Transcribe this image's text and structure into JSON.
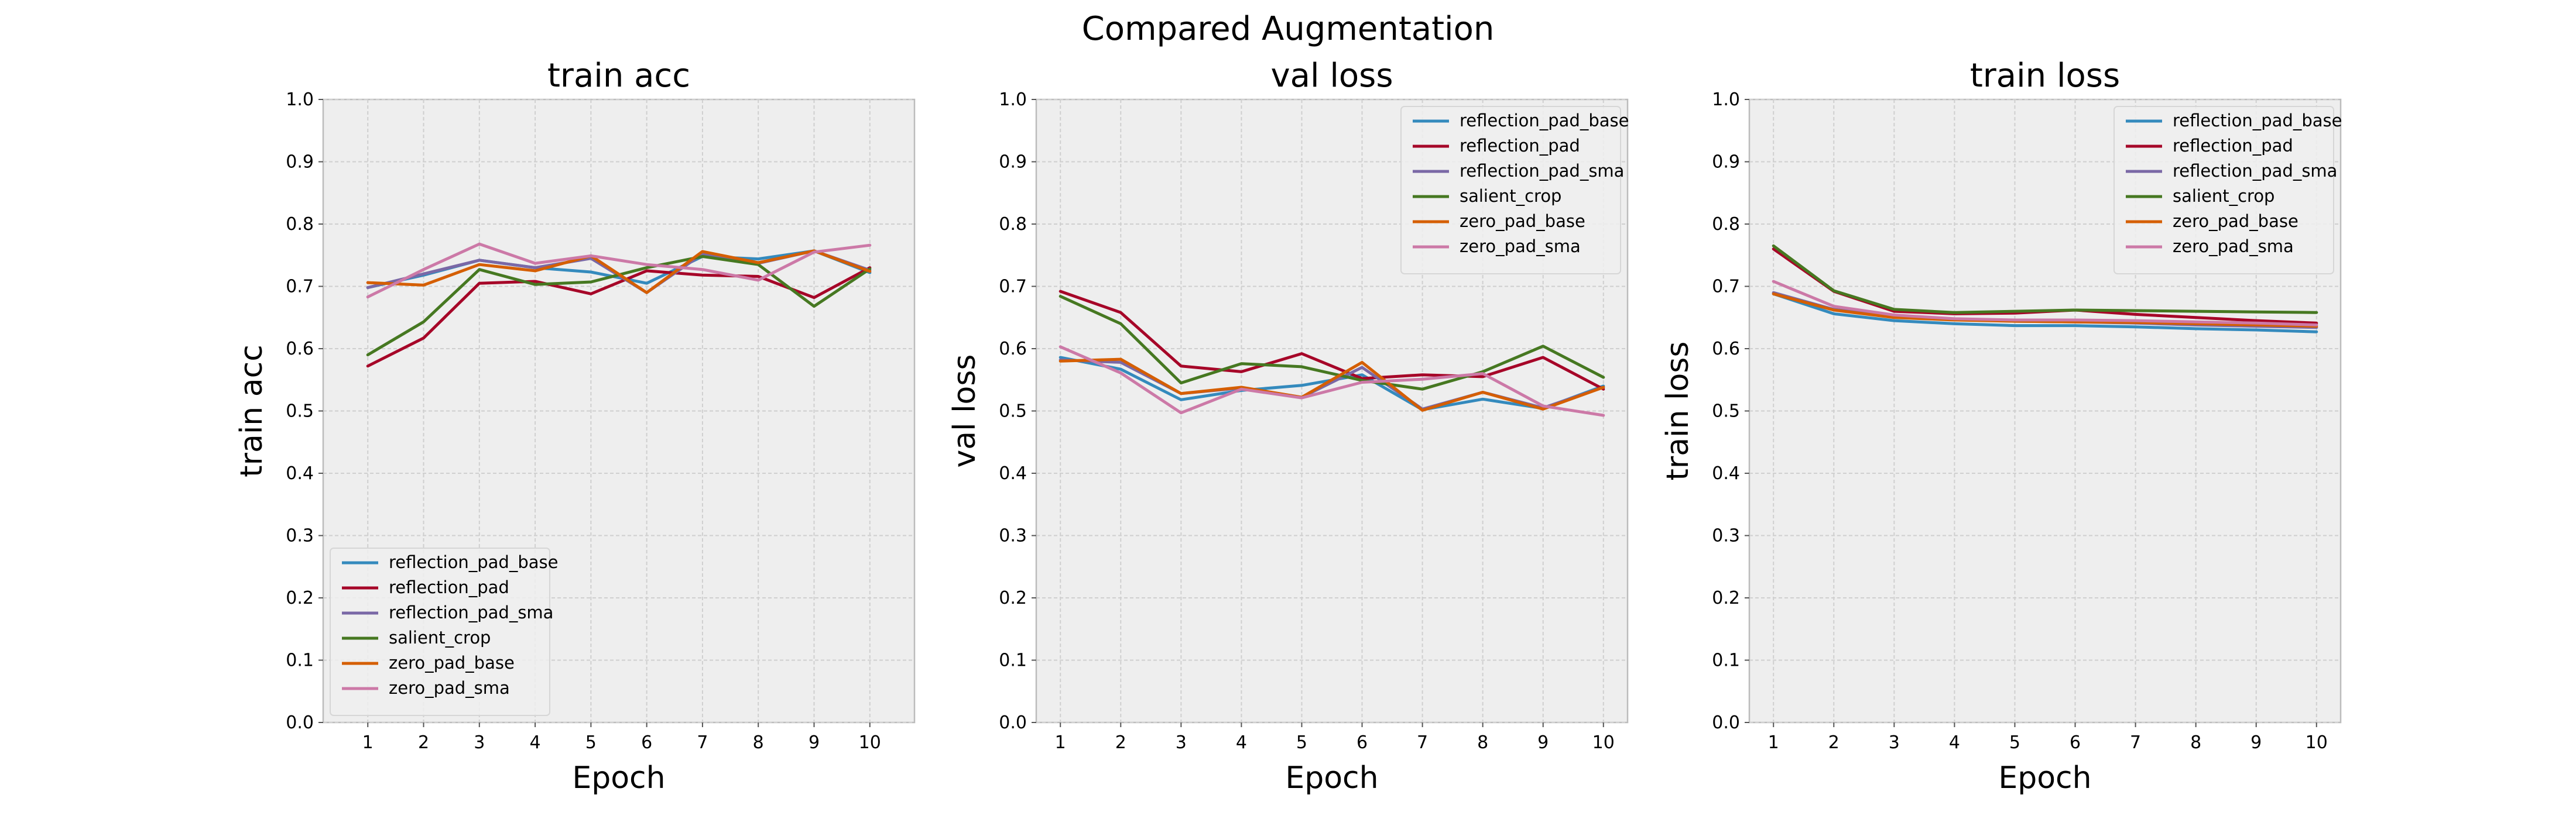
{
  "figure_title": "Compared Augmentation",
  "colors": {
    "reflection_pad_base": "#348ABD",
    "reflection_pad": "#A60628",
    "reflection_pad_sma": "#7A68A6",
    "salient_crop": "#467821",
    "zero_pad_base": "#D55E00",
    "zero_pad_sma": "#CC79A7"
  },
  "chart_data": [
    {
      "type": "line",
      "title": "train acc",
      "xlabel": "Epoch",
      "ylabel": "train acc",
      "x": [
        1,
        2,
        3,
        4,
        5,
        6,
        7,
        8,
        9,
        10
      ],
      "xlim": [
        0.2,
        10.8
      ],
      "ylim": [
        0.0,
        1.0
      ],
      "yticks": [
        "0.0",
        "0.1",
        "0.2",
        "0.3",
        "0.4",
        "0.5",
        "0.6",
        "0.7",
        "0.8",
        "0.9",
        "1.0"
      ],
      "grid": true,
      "legend": "lower-left",
      "series": [
        {
          "name": "reflection_pad_base",
          "values": [
            0.698,
            0.718,
            0.742,
            0.73,
            0.723,
            0.705,
            0.748,
            0.744,
            0.757,
            0.722
          ]
        },
        {
          "name": "reflection_pad",
          "values": [
            0.572,
            0.617,
            0.705,
            0.708,
            0.688,
            0.725,
            0.718,
            0.716,
            0.682,
            0.73
          ]
        },
        {
          "name": "reflection_pad_sma",
          "values": [
            0.698,
            0.72,
            0.742,
            0.73,
            0.745,
            0.69,
            0.752,
            0.737,
            0.757,
            0.726
          ]
        },
        {
          "name": "salient_crop",
          "values": [
            0.59,
            0.643,
            0.727,
            0.703,
            0.707,
            0.73,
            0.748,
            0.735,
            0.668,
            0.728
          ]
        },
        {
          "name": "zero_pad_base",
          "values": [
            0.706,
            0.702,
            0.735,
            0.725,
            0.749,
            0.69,
            0.756,
            0.738,
            0.757,
            0.724
          ]
        },
        {
          "name": "zero_pad_sma",
          "values": [
            0.683,
            0.727,
            0.768,
            0.737,
            0.749,
            0.735,
            0.727,
            0.71,
            0.755,
            0.766
          ]
        }
      ]
    },
    {
      "type": "line",
      "title": "val loss",
      "xlabel": "Epoch",
      "ylabel": "val loss",
      "x": [
        1,
        2,
        3,
        4,
        5,
        6,
        7,
        8,
        9,
        10
      ],
      "xlim": [
        0.6,
        10.4
      ],
      "ylim": [
        0.0,
        1.0
      ],
      "yticks": [
        "0.0",
        "0.1",
        "0.2",
        "0.3",
        "0.4",
        "0.5",
        "0.6",
        "0.7",
        "0.8",
        "0.9",
        "1.0"
      ],
      "grid": true,
      "legend": "upper-right",
      "series": [
        {
          "name": "reflection_pad_base",
          "values": [
            0.586,
            0.567,
            0.518,
            0.533,
            0.541,
            0.558,
            0.502,
            0.519,
            0.504,
            0.54
          ]
        },
        {
          "name": "reflection_pad",
          "values": [
            0.692,
            0.658,
            0.572,
            0.563,
            0.592,
            0.552,
            0.558,
            0.555,
            0.586,
            0.535
          ]
        },
        {
          "name": "reflection_pad_sma",
          "values": [
            0.582,
            0.578,
            0.528,
            0.537,
            0.522,
            0.57,
            0.503,
            0.53,
            0.505,
            0.538
          ]
        },
        {
          "name": "salient_crop",
          "values": [
            0.684,
            0.64,
            0.545,
            0.576,
            0.571,
            0.549,
            0.535,
            0.563,
            0.604,
            0.554
          ]
        },
        {
          "name": "zero_pad_base",
          "values": [
            0.58,
            0.583,
            0.528,
            0.538,
            0.522,
            0.578,
            0.501,
            0.53,
            0.503,
            0.538
          ]
        },
        {
          "name": "zero_pad_sma",
          "values": [
            0.603,
            0.561,
            0.497,
            0.535,
            0.521,
            0.546,
            0.551,
            0.56,
            0.508,
            0.493
          ]
        }
      ]
    },
    {
      "type": "line",
      "title": "train loss",
      "xlabel": "Epoch",
      "ylabel": "train loss",
      "x": [
        1,
        2,
        3,
        4,
        5,
        6,
        7,
        8,
        9,
        10
      ],
      "xlim": [
        0.6,
        10.4
      ],
      "ylim": [
        0.0,
        1.0
      ],
      "yticks": [
        "0.0",
        "0.1",
        "0.2",
        "0.3",
        "0.4",
        "0.5",
        "0.6",
        "0.7",
        "0.8",
        "0.9",
        "1.0"
      ],
      "grid": true,
      "legend": "upper-right",
      "series": [
        {
          "name": "reflection_pad_base",
          "values": [
            0.688,
            0.656,
            0.645,
            0.64,
            0.637,
            0.637,
            0.635,
            0.632,
            0.63,
            0.627
          ]
        },
        {
          "name": "reflection_pad",
          "values": [
            0.76,
            0.692,
            0.66,
            0.656,
            0.657,
            0.662,
            0.655,
            0.65,
            0.645,
            0.641
          ]
        },
        {
          "name": "reflection_pad_sma",
          "values": [
            0.69,
            0.663,
            0.652,
            0.647,
            0.644,
            0.643,
            0.641,
            0.638,
            0.636,
            0.634
          ]
        },
        {
          "name": "salient_crop",
          "values": [
            0.765,
            0.693,
            0.663,
            0.658,
            0.66,
            0.662,
            0.661,
            0.66,
            0.659,
            0.658
          ]
        },
        {
          "name": "zero_pad_base",
          "values": [
            0.688,
            0.662,
            0.65,
            0.646,
            0.644,
            0.643,
            0.642,
            0.64,
            0.638,
            0.636
          ]
        },
        {
          "name": "zero_pad_sma",
          "values": [
            0.708,
            0.668,
            0.654,
            0.648,
            0.646,
            0.646,
            0.645,
            0.643,
            0.641,
            0.638
          ]
        }
      ]
    }
  ]
}
